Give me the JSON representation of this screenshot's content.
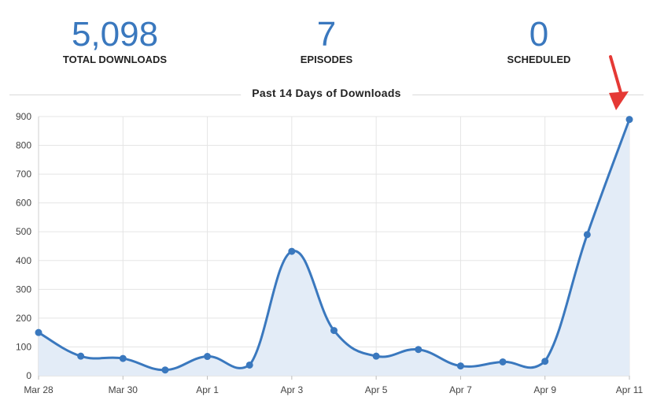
{
  "stats": {
    "downloads": {
      "value": "5,098",
      "label": "TOTAL DOWNLOADS"
    },
    "episodes": {
      "value": "7",
      "label": "EPISODES"
    },
    "scheduled": {
      "value": "0",
      "label": "SCHEDULED"
    }
  },
  "colors": {
    "accent": "#3a78be",
    "fill": "#e3ecf7",
    "grid": "#e5e5e5",
    "arrow": "#e53935"
  },
  "chart_data": {
    "type": "area",
    "title": "Past 14 Days of Downloads",
    "xlabel": "",
    "ylabel": "",
    "ylim": [
      0,
      900
    ],
    "yticks": [
      0,
      100,
      200,
      300,
      400,
      500,
      600,
      700,
      800,
      900
    ],
    "x": [
      "Mar 28",
      "Mar 29",
      "Mar 30",
      "Mar 31",
      "Apr 1",
      "Apr 2",
      "Apr 3",
      "Apr 4",
      "Apr 5",
      "Apr 6",
      "Apr 7",
      "Apr 8",
      "Apr 9",
      "Apr 10",
      "Apr 11"
    ],
    "xtick_labels": [
      "Mar 28",
      "Mar 30",
      "Apr 1",
      "Apr 3",
      "Apr 5",
      "Apr 7",
      "Apr 9",
      "Apr 11"
    ],
    "series": [
      {
        "values": [
          150,
          68,
          60,
          20,
          67,
          37,
          432,
          157,
          68,
          91,
          34,
          48,
          50,
          490,
          890
        ]
      }
    ],
    "grid": true,
    "legend": "none",
    "annotations": [
      "arrow pointing to Apr 11 peak"
    ]
  }
}
